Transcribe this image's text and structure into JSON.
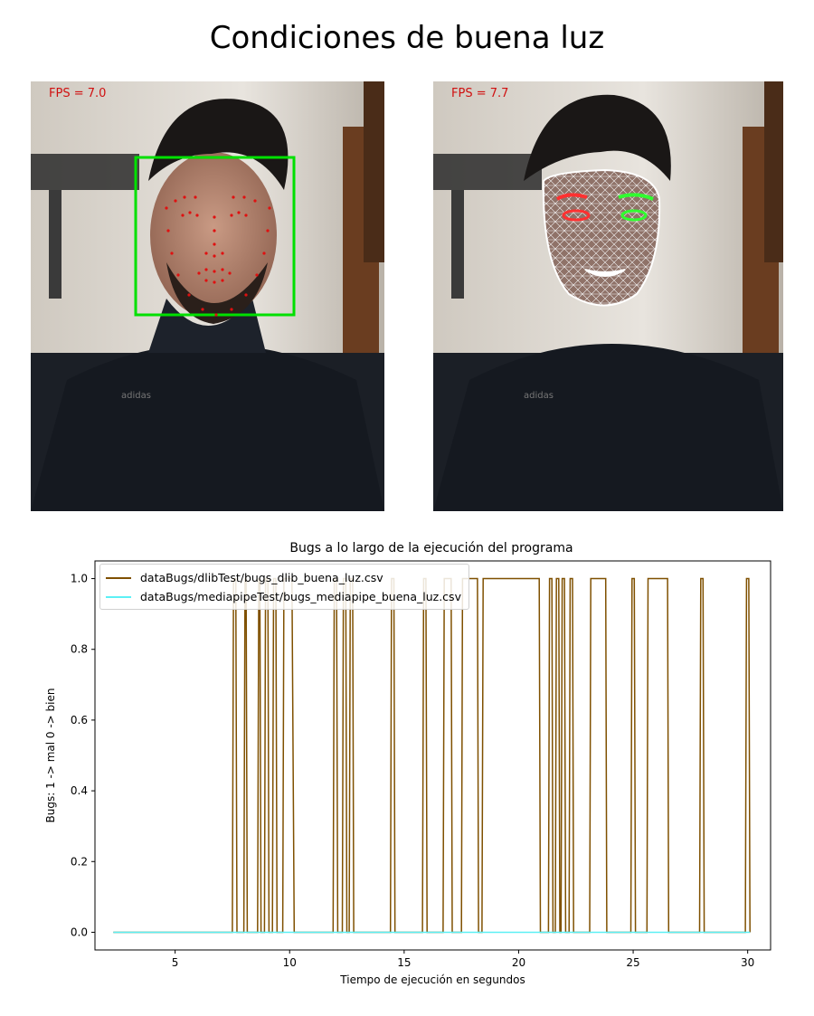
{
  "figure": {
    "title": "Condiciones de buena luz"
  },
  "photos": [
    {
      "fps_text": "FPS = 7.0",
      "method": "dlib landmarks"
    },
    {
      "fps_text": "FPS = 7.7",
      "method": "mediapipe face mesh"
    }
  ],
  "colors": {
    "dlib": "#7f5000",
    "mediapipe": "#5cf0f5",
    "box": "#00e000",
    "landmark": "#e01010"
  },
  "chart_data": {
    "type": "line",
    "title": "Bugs a lo largo de la ejecución del programa",
    "xlabel": "Tiempo de ejecución en segundos",
    "ylabel": "Bugs: 1 -> mal  0 -> bien",
    "xlim": [
      1.5,
      31
    ],
    "ylim": [
      -0.05,
      1.05
    ],
    "xticks": [
      5,
      10,
      15,
      20,
      25,
      30
    ],
    "yticks": [
      "0.0",
      "0.2",
      "0.4",
      "0.6",
      "0.8",
      "1.0"
    ],
    "grid": false,
    "legend_position": "upper-left",
    "series": [
      {
        "name": "dataBugs/dlibTest/bugs_dlib_buena_luz.csv",
        "color": "#7f5000",
        "step_points": [
          [
            2.3,
            0
          ],
          [
            7.5,
            0
          ],
          [
            7.55,
            1
          ],
          [
            7.65,
            1
          ],
          [
            7.7,
            0
          ],
          [
            8.0,
            0
          ],
          [
            8.05,
            1
          ],
          [
            8.1,
            1
          ],
          [
            8.15,
            0
          ],
          [
            8.6,
            0
          ],
          [
            8.65,
            1
          ],
          [
            8.7,
            1
          ],
          [
            8.75,
            0
          ],
          [
            8.9,
            0
          ],
          [
            8.95,
            1
          ],
          [
            9.05,
            1
          ],
          [
            9.1,
            0
          ],
          [
            9.25,
            0
          ],
          [
            9.3,
            1
          ],
          [
            9.4,
            1
          ],
          [
            9.45,
            0
          ],
          [
            9.7,
            0
          ],
          [
            9.75,
            1
          ],
          [
            10.1,
            1
          ],
          [
            10.2,
            0
          ],
          [
            11.9,
            0
          ],
          [
            11.95,
            1
          ],
          [
            12.05,
            1
          ],
          [
            12.1,
            0
          ],
          [
            12.3,
            0
          ],
          [
            12.35,
            1
          ],
          [
            12.45,
            1
          ],
          [
            12.5,
            0
          ],
          [
            12.6,
            0
          ],
          [
            12.65,
            1
          ],
          [
            12.75,
            1
          ],
          [
            12.8,
            0
          ],
          [
            14.4,
            0
          ],
          [
            14.45,
            1
          ],
          [
            14.55,
            1
          ],
          [
            14.6,
            0
          ],
          [
            15.8,
            0
          ],
          [
            15.85,
            1
          ],
          [
            15.95,
            1
          ],
          [
            16.0,
            0
          ],
          [
            16.7,
            0
          ],
          [
            16.75,
            1
          ],
          [
            17.05,
            1
          ],
          [
            17.1,
            0
          ],
          [
            17.5,
            0
          ],
          [
            17.55,
            1
          ],
          [
            18.2,
            1
          ],
          [
            18.25,
            0
          ],
          [
            18.4,
            0
          ],
          [
            18.45,
            1
          ],
          [
            20.9,
            1
          ],
          [
            20.95,
            0
          ],
          [
            21.3,
            0
          ],
          [
            21.35,
            1
          ],
          [
            21.45,
            1
          ],
          [
            21.5,
            0
          ],
          [
            21.6,
            0
          ],
          [
            21.65,
            1
          ],
          [
            21.75,
            1
          ],
          [
            21.8,
            0
          ],
          [
            21.85,
            0
          ],
          [
            21.9,
            1
          ],
          [
            22.0,
            1
          ],
          [
            22.05,
            0
          ],
          [
            22.2,
            0
          ],
          [
            22.25,
            1
          ],
          [
            22.35,
            1
          ],
          [
            22.4,
            0
          ],
          [
            23.1,
            0
          ],
          [
            23.15,
            1
          ],
          [
            23.8,
            1
          ],
          [
            23.85,
            0
          ],
          [
            24.9,
            0
          ],
          [
            24.95,
            1
          ],
          [
            25.05,
            1
          ],
          [
            25.1,
            0
          ],
          [
            25.6,
            0
          ],
          [
            25.65,
            1
          ],
          [
            26.5,
            1
          ],
          [
            26.55,
            0
          ],
          [
            27.9,
            0
          ],
          [
            27.95,
            1
          ],
          [
            28.05,
            1
          ],
          [
            28.1,
            0
          ],
          [
            29.9,
            0
          ],
          [
            29.95,
            1
          ],
          [
            30.05,
            1
          ],
          [
            30.1,
            0
          ]
        ]
      },
      {
        "name": "dataBugs/mediapipeTest/bugs_mediapipe_buena_luz.csv",
        "color": "#5cf0f5",
        "step_points": [
          [
            2.3,
            0
          ],
          [
            30.1,
            0
          ]
        ]
      }
    ]
  }
}
